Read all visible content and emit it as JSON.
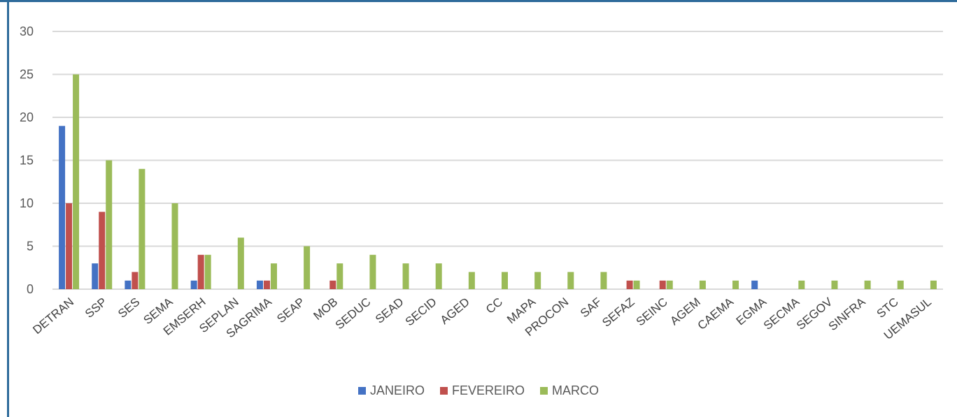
{
  "chart_data": {
    "type": "bar",
    "categories": [
      "DETRAN",
      "SSP",
      "SES",
      "SEMA",
      "EMSERH",
      "SEPLAN",
      "SAGRIMA",
      "SEAP",
      "MOB",
      "SEDUC",
      "SEAD",
      "SECID",
      "AGED",
      "CC",
      "MAPA",
      "PROCON",
      "SAF",
      "SEFAZ",
      "SEINC",
      "AGEM",
      "CAEMA",
      "EGMA",
      "SECMA",
      "SEGOV",
      "SINFRA",
      "STC",
      "UEMASUL"
    ],
    "series": [
      {
        "name": "JANEIRO",
        "color": "#4472c4",
        "values": [
          19,
          3,
          1,
          0,
          1,
          0,
          1,
          0,
          0,
          0,
          0,
          0,
          0,
          0,
          0,
          0,
          0,
          0,
          0,
          0,
          0,
          1,
          0,
          0,
          0,
          0,
          0
        ]
      },
      {
        "name": "FEVEREIRO",
        "color": "#c0504d",
        "values": [
          10,
          9,
          2,
          0,
          4,
          0,
          1,
          0,
          1,
          0,
          0,
          0,
          0,
          0,
          0,
          0,
          0,
          1,
          1,
          0,
          0,
          0,
          0,
          0,
          0,
          0,
          0
        ]
      },
      {
        "name": "MARCO",
        "color": "#9bbb59",
        "values": [
          25,
          15,
          14,
          10,
          4,
          6,
          3,
          5,
          3,
          4,
          3,
          3,
          2,
          2,
          2,
          2,
          2,
          1,
          1,
          1,
          1,
          0,
          1,
          1,
          1,
          1,
          1
        ]
      }
    ],
    "yticks": [
      "0",
      "5",
      "10",
      "15",
      "20",
      "25",
      "30"
    ],
    "ylim": [
      0,
      30
    ],
    "grid": true,
    "legend_position": "bottom"
  }
}
